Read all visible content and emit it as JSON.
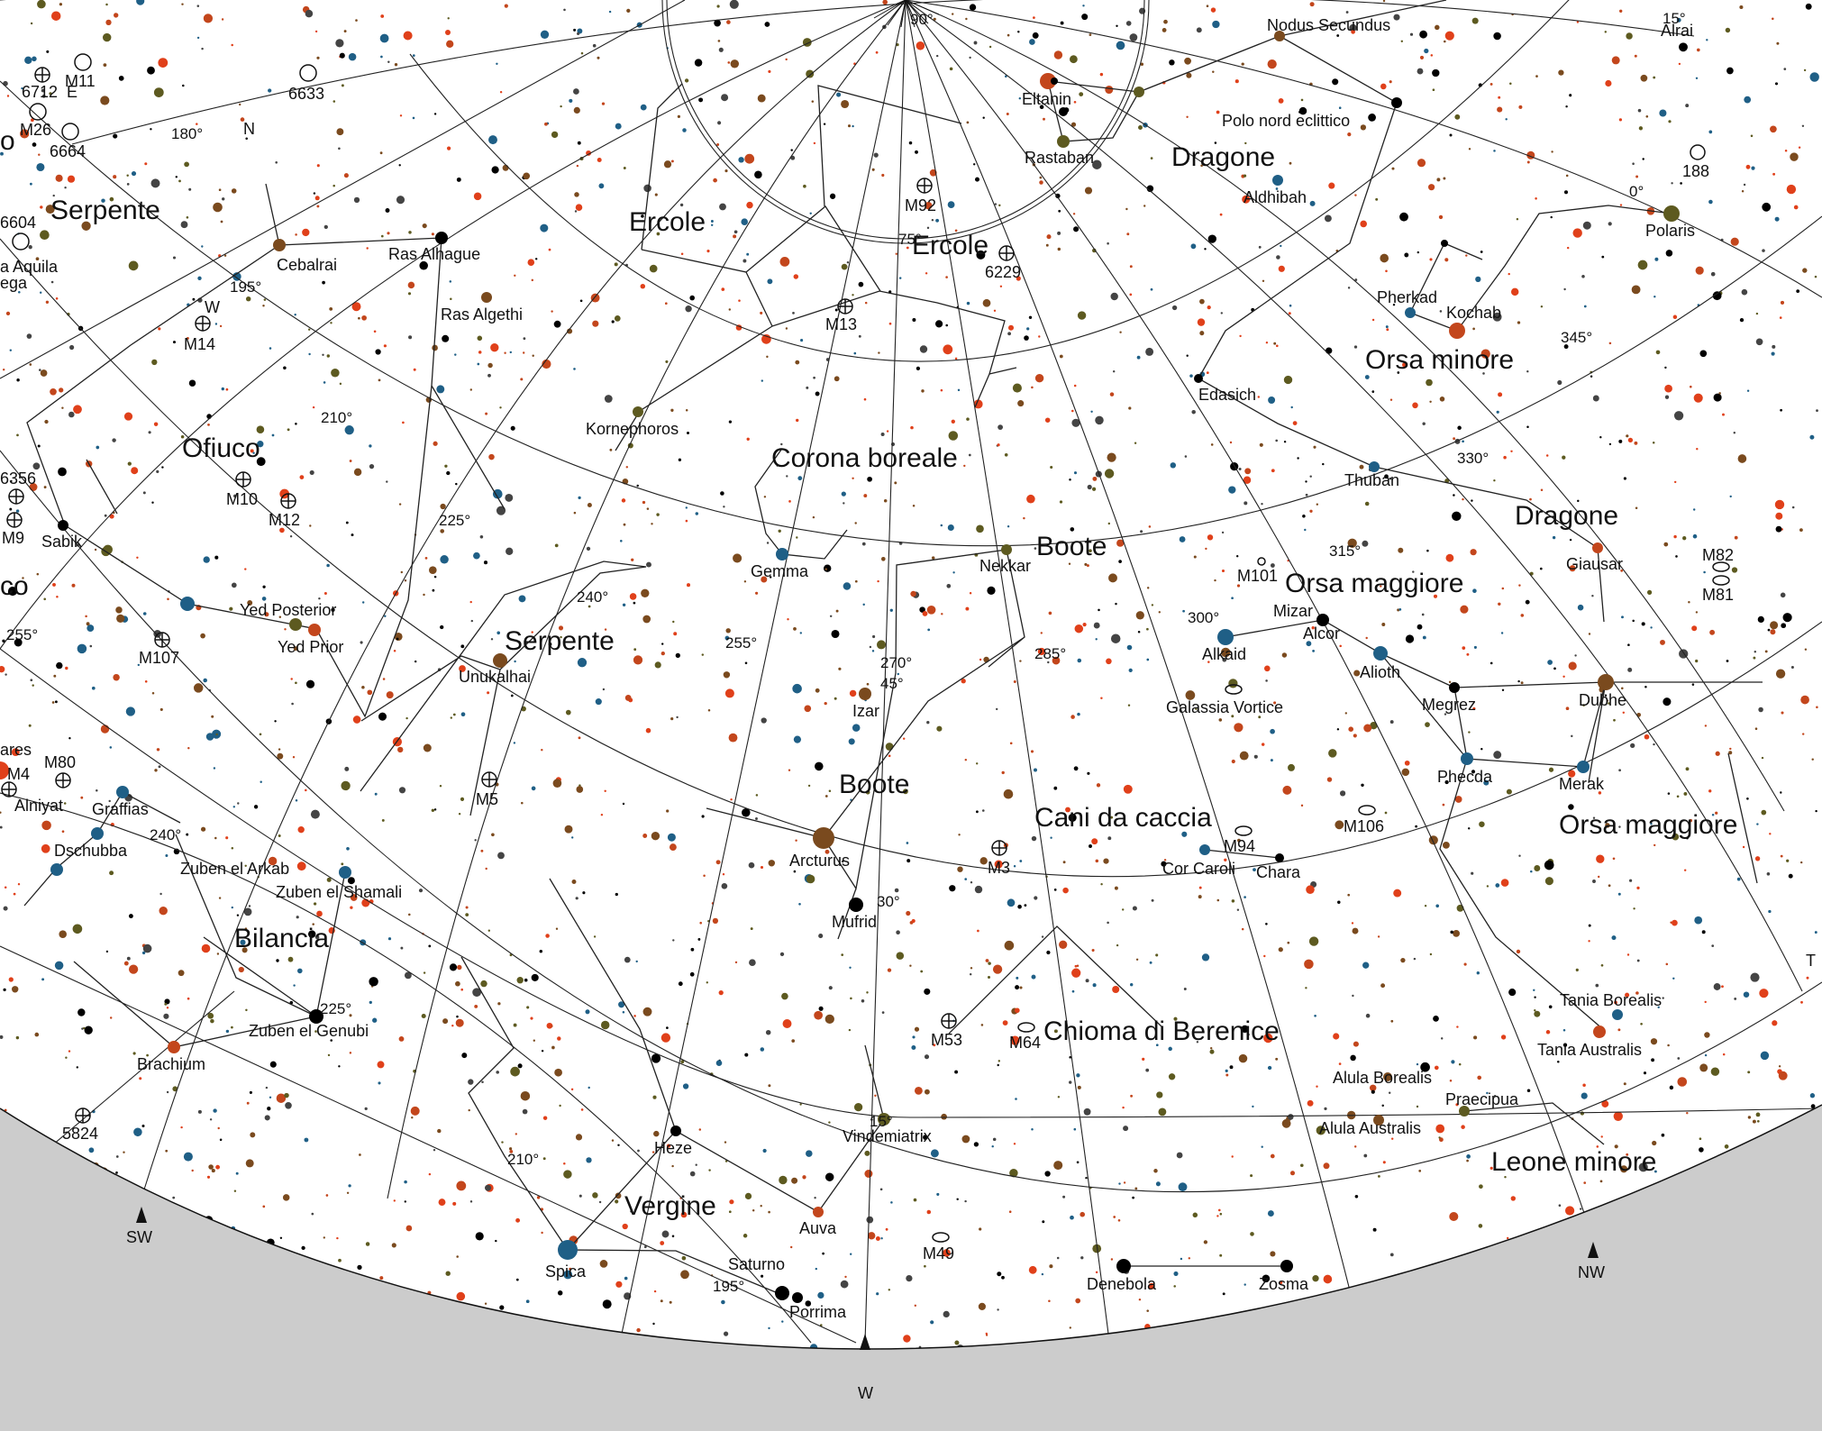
{
  "palette": {
    "sky": "#ffffff",
    "ground": "#cccccc",
    "ink": "#111111",
    "star_colors": [
      "#000000",
      "#c3461c",
      "#7a4a1e",
      "#5d5a20",
      "#1f5f86",
      "#e0401a",
      "#444444"
    ]
  },
  "constellation_labels": [
    {
      "id": "serpente-1",
      "text": "Serpente"
    },
    {
      "id": "ercole-1",
      "text": "Ercole"
    },
    {
      "id": "ercole-2",
      "text": "Ercole"
    },
    {
      "id": "dragone-1",
      "text": "Dragone"
    },
    {
      "id": "dragone-2",
      "text": "Dragone"
    },
    {
      "id": "orsa-minore",
      "text": "Orsa minore"
    },
    {
      "id": "ofiuco",
      "text": "Ofiuco"
    },
    {
      "id": "corona-boreale",
      "text": "Corona boreale"
    },
    {
      "id": "boote-1",
      "text": "Boote"
    },
    {
      "id": "boote-2",
      "text": "Boote"
    },
    {
      "id": "orsa-maggiore-1",
      "text": "Orsa maggiore"
    },
    {
      "id": "orsa-maggiore-2",
      "text": "Orsa maggiore"
    },
    {
      "id": "serpente-2",
      "text": "Serpente"
    },
    {
      "id": "cani-da-caccia",
      "text": "Cani da caccia"
    },
    {
      "id": "bilancia",
      "text": "Bilancia"
    },
    {
      "id": "chioma-di-berenice",
      "text": "Chioma di Berenice"
    },
    {
      "id": "vergine",
      "text": "Vergine"
    },
    {
      "id": "leone-minore",
      "text": "Leone minore"
    },
    {
      "id": "cut-o",
      "text": "o"
    },
    {
      "id": "cut-co",
      "text": "co"
    }
  ],
  "star_labels": [
    {
      "id": "nodus-secundus",
      "text": "Nodus Secundus"
    },
    {
      "id": "alrai",
      "text": "Alrai"
    },
    {
      "id": "eltanin",
      "text": "Eltanin"
    },
    {
      "id": "rastaban",
      "text": "Rastaban"
    },
    {
      "id": "polo-nord",
      "text": "Polo nord eclittico"
    },
    {
      "id": "aldhibah",
      "text": "Aldhibah"
    },
    {
      "id": "polaris",
      "text": "Polaris"
    },
    {
      "id": "pherkad",
      "text": "Pherkad"
    },
    {
      "id": "kochab",
      "text": "Kochab"
    },
    {
      "id": "cebalrai",
      "text": "Cebalrai"
    },
    {
      "id": "ras-alhague",
      "text": "Ras Alhague"
    },
    {
      "id": "ras-algethi",
      "text": "Ras Algethi"
    },
    {
      "id": "kornephoros",
      "text": "Kornephoros"
    },
    {
      "id": "edasich",
      "text": "Edasich"
    },
    {
      "id": "thuban",
      "text": "Thuban"
    },
    {
      "id": "gemma",
      "text": "Gemma"
    },
    {
      "id": "nekkar",
      "text": "Nekkar"
    },
    {
      "id": "giausar",
      "text": "Giausar"
    },
    {
      "id": "sabik",
      "text": "Sabik"
    },
    {
      "id": "yed-posterior",
      "text": "Yed Posterior"
    },
    {
      "id": "yed-prior",
      "text": "Yed Prior"
    },
    {
      "id": "unukalhai",
      "text": "Unukalhai"
    },
    {
      "id": "mizar",
      "text": "Mizar"
    },
    {
      "id": "alcor",
      "text": "Alcor"
    },
    {
      "id": "alkaid",
      "text": "Alkaid"
    },
    {
      "id": "alioth",
      "text": "Alioth"
    },
    {
      "id": "megrez",
      "text": "Megrez"
    },
    {
      "id": "dubhe",
      "text": "Dubhe"
    },
    {
      "id": "galassia-vortice",
      "text": "Galassia Vortice"
    },
    {
      "id": "izar",
      "text": "Izar"
    },
    {
      "id": "phecda",
      "text": "Phecda"
    },
    {
      "id": "merak",
      "text": "Merak"
    },
    {
      "id": "arcturus",
      "text": "Arcturus"
    },
    {
      "id": "cor-caroli",
      "text": "Cor Caroli"
    },
    {
      "id": "chara",
      "text": "Chara"
    },
    {
      "id": "graffias",
      "text": "Graffias"
    },
    {
      "id": "alniyat",
      "text": "Alniyat"
    },
    {
      "id": "dschubba",
      "text": "Dschubba"
    },
    {
      "id": "zuben-el-arkab",
      "text": "Zuben el Arkab"
    },
    {
      "id": "zuben-el-shamali",
      "text": "Zuben el Shamali"
    },
    {
      "id": "mufrid",
      "text": "Mufrid"
    },
    {
      "id": "zuben-el-genubi",
      "text": "Zuben el Genubi"
    },
    {
      "id": "brachium",
      "text": "Brachium"
    },
    {
      "id": "tania-borealis",
      "text": "Tania Borealis"
    },
    {
      "id": "tania-australis",
      "text": "Tania Australis"
    },
    {
      "id": "alula-borealis",
      "text": "Alula Borealis"
    },
    {
      "id": "alula-australis",
      "text": "Alula Australis"
    },
    {
      "id": "praecipua",
      "text": "Praecipua"
    },
    {
      "id": "vindemiatrix",
      "text": "Vindemiatrix"
    },
    {
      "id": "heze",
      "text": "Heze"
    },
    {
      "id": "auva",
      "text": "Auva"
    },
    {
      "id": "spica",
      "text": "Spica"
    },
    {
      "id": "saturno",
      "text": "Saturno"
    },
    {
      "id": "porrima",
      "text": "Porrima"
    },
    {
      "id": "denebola",
      "text": "Denebola"
    },
    {
      "id": "zosma",
      "text": "Zosma"
    },
    {
      "id": "cut-ares",
      "text": "ares"
    },
    {
      "id": "cut-aquila",
      "text": "a Aquila"
    },
    {
      "id": "cut-ega",
      "text": "ega"
    }
  ],
  "deep_sky_labels": [
    {
      "id": "m11",
      "text": "M11"
    },
    {
      "id": "n6712",
      "text": "6712"
    },
    {
      "id": "m26",
      "text": "M26"
    },
    {
      "id": "n6633",
      "text": "6633"
    },
    {
      "id": "n6664",
      "text": "6664"
    },
    {
      "id": "n6604",
      "text": "6604"
    },
    {
      "id": "m92",
      "text": "M92"
    },
    {
      "id": "n188",
      "text": "188"
    },
    {
      "id": "n6229",
      "text": "6229"
    },
    {
      "id": "m14",
      "text": "M14"
    },
    {
      "id": "m13",
      "text": "M13"
    },
    {
      "id": "m10",
      "text": "M10"
    },
    {
      "id": "m12",
      "text": "M12"
    },
    {
      "id": "n6356",
      "text": "6356"
    },
    {
      "id": "m9",
      "text": "M9"
    },
    {
      "id": "m101",
      "text": "M101"
    },
    {
      "id": "m82",
      "text": "M82"
    },
    {
      "id": "m81",
      "text": "M81"
    },
    {
      "id": "m107",
      "text": "M107"
    },
    {
      "id": "m80",
      "text": "M80"
    },
    {
      "id": "m4",
      "text": "M4"
    },
    {
      "id": "m5",
      "text": "M5"
    },
    {
      "id": "m106",
      "text": "M106"
    },
    {
      "id": "m94",
      "text": "M94"
    },
    {
      "id": "m3",
      "text": "M3"
    },
    {
      "id": "m53",
      "text": "M53"
    },
    {
      "id": "m64",
      "text": "M64"
    },
    {
      "id": "n5824",
      "text": "5824"
    },
    {
      "id": "m49",
      "text": "M49"
    }
  ],
  "grid_labels": [
    {
      "id": "g90",
      "text": "90°"
    },
    {
      "id": "g180",
      "text": "180°"
    },
    {
      "id": "g15a",
      "text": "15°"
    },
    {
      "id": "g0",
      "text": "0°"
    },
    {
      "id": "g75",
      "text": "75°"
    },
    {
      "id": "g195a",
      "text": "195°"
    },
    {
      "id": "g345",
      "text": "345°"
    },
    {
      "id": "g210a",
      "text": "210°"
    },
    {
      "id": "g330",
      "text": "330°"
    },
    {
      "id": "g225a",
      "text": "225°"
    },
    {
      "id": "g315",
      "text": "315°"
    },
    {
      "id": "g240a",
      "text": "240°"
    },
    {
      "id": "g255a",
      "text": "255°"
    },
    {
      "id": "g270",
      "text": "270°"
    },
    {
      "id": "g285",
      "text": "285°"
    },
    {
      "id": "g300",
      "text": "300°"
    },
    {
      "id": "g45",
      "text": "45°"
    },
    {
      "id": "g255b",
      "text": "255°"
    },
    {
      "id": "g240b",
      "text": "240°"
    },
    {
      "id": "g30",
      "text": "30°"
    },
    {
      "id": "g225b",
      "text": "225°"
    },
    {
      "id": "g15b",
      "text": "15°"
    },
    {
      "id": "g210b",
      "text": "210°"
    },
    {
      "id": "g195b",
      "text": "195°"
    }
  ],
  "compass": [
    {
      "id": "sw",
      "text": "SW"
    },
    {
      "id": "w",
      "text": "W"
    },
    {
      "id": "nw",
      "text": "NW"
    }
  ],
  "edge_marks": [
    {
      "id": "n-mark",
      "text": "N"
    },
    {
      "id": "w-mark",
      "text": "W"
    },
    {
      "id": "e-mark",
      "text": "E"
    },
    {
      "id": "t-mark",
      "text": "T"
    }
  ]
}
